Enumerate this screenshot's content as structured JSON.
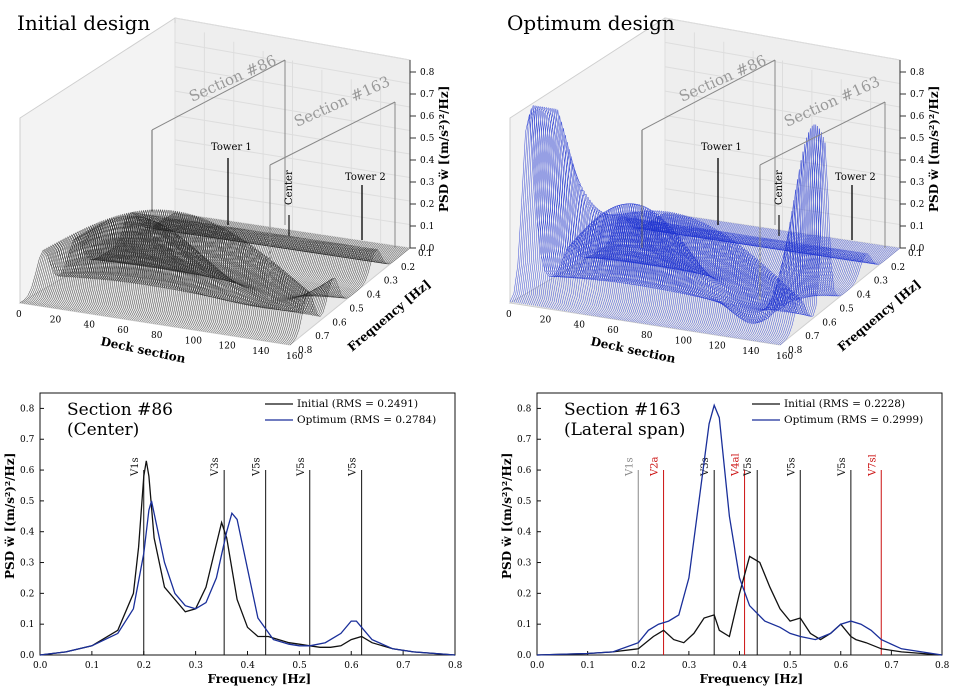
{
  "chart_data": [
    {
      "type": "surface3d",
      "title": "Initial design",
      "color": "#222222",
      "xlabel": "Deck section",
      "ylabel": "Frequency [Hz]",
      "zlabel": "PSD ẅ [(m/s²)²/Hz]",
      "x_ticks": [
        "0",
        "20",
        "40",
        "60",
        "80",
        "100",
        "120",
        "140",
        "160"
      ],
      "y_ticks": [
        "0.1",
        "0.2",
        "0.3",
        "0.4",
        "0.5",
        "0.6",
        "0.7",
        "0.8"
      ],
      "z_ticks": [
        "0.0",
        "0.1",
        "0.2",
        "0.3",
        "0.4",
        "0.5",
        "0.6",
        "0.7",
        "0.8"
      ],
      "annotations": [
        "Section #86",
        "Section #163",
        "Tower 1",
        "Center",
        "Tower 2"
      ]
    },
    {
      "type": "surface3d",
      "title": "Optimum design",
      "color": "#1a2fd0",
      "xlabel": "Deck section",
      "ylabel": "Frequency [Hz]",
      "zlabel": "PSD ẅ [(m/s²)²/Hz]",
      "x_ticks": [
        "0",
        "20",
        "40",
        "60",
        "80",
        "100",
        "120",
        "140",
        "160"
      ],
      "y_ticks": [
        "0.1",
        "0.2",
        "0.3",
        "0.4",
        "0.5",
        "0.6",
        "0.7",
        "0.8"
      ],
      "z_ticks": [
        "0.0",
        "0.1",
        "0.2",
        "0.3",
        "0.4",
        "0.5",
        "0.6",
        "0.7",
        "0.8"
      ],
      "annotations": [
        "Section #86",
        "Section #163",
        "Tower 1",
        "Center",
        "Tower 2"
      ]
    },
    {
      "type": "line",
      "title": "Section #86",
      "subtitle": "(Center)",
      "xlabel": "Frequency [Hz]",
      "ylabel": "PSD ẅ [(m/s²)²/Hz]",
      "xlim": [
        0,
        0.8
      ],
      "ylim": [
        0,
        0.85
      ],
      "x_ticks": [
        "0.0",
        "0.1",
        "0.2",
        "0.3",
        "0.4",
        "0.5",
        "0.6",
        "0.7",
        "0.8"
      ],
      "y_ticks": [
        "0.0",
        "0.1",
        "0.2",
        "0.3",
        "0.4",
        "0.5",
        "0.6",
        "0.7",
        "0.8"
      ],
      "series": [
        {
          "name": "Initial (RMS = 0.2491)",
          "color": "#111111",
          "x": [
            0,
            0.05,
            0.1,
            0.15,
            0.18,
            0.19,
            0.2,
            0.205,
            0.21,
            0.22,
            0.24,
            0.28,
            0.3,
            0.32,
            0.34,
            0.35,
            0.36,
            0.38,
            0.4,
            0.42,
            0.44,
            0.46,
            0.48,
            0.5,
            0.52,
            0.54,
            0.56,
            0.58,
            0.6,
            0.62,
            0.64,
            0.68,
            0.72,
            0.8
          ],
          "y": [
            0,
            0.01,
            0.03,
            0.08,
            0.2,
            0.35,
            0.58,
            0.63,
            0.58,
            0.38,
            0.22,
            0.14,
            0.15,
            0.22,
            0.36,
            0.43,
            0.38,
            0.18,
            0.09,
            0.06,
            0.06,
            0.05,
            0.04,
            0.035,
            0.03,
            0.025,
            0.025,
            0.03,
            0.05,
            0.06,
            0.04,
            0.02,
            0.01,
            0
          ]
        },
        {
          "name": "Optimum (RMS = 0.2784)",
          "color": "#1a2f9a",
          "x": [
            0,
            0.05,
            0.1,
            0.15,
            0.18,
            0.2,
            0.21,
            0.215,
            0.22,
            0.24,
            0.26,
            0.28,
            0.3,
            0.32,
            0.34,
            0.36,
            0.37,
            0.38,
            0.4,
            0.42,
            0.45,
            0.48,
            0.5,
            0.52,
            0.55,
            0.58,
            0.6,
            0.61,
            0.62,
            0.64,
            0.68,
            0.72,
            0.8
          ],
          "y": [
            0,
            0.01,
            0.03,
            0.07,
            0.15,
            0.33,
            0.47,
            0.5,
            0.46,
            0.3,
            0.2,
            0.16,
            0.15,
            0.17,
            0.25,
            0.4,
            0.46,
            0.44,
            0.28,
            0.12,
            0.05,
            0.035,
            0.03,
            0.03,
            0.04,
            0.07,
            0.11,
            0.11,
            0.09,
            0.05,
            0.02,
            0.01,
            0
          ]
        }
      ],
      "mode_lines": [
        {
          "label": "V1s",
          "x": 0.2,
          "color": "#111111"
        },
        {
          "label": "V3s",
          "x": 0.355,
          "color": "#111111"
        },
        {
          "label": "V5s",
          "x": 0.435,
          "color": "#111111"
        },
        {
          "label": "V5s",
          "x": 0.52,
          "color": "#111111"
        },
        {
          "label": "V5s",
          "x": 0.62,
          "color": "#111111"
        }
      ]
    },
    {
      "type": "line",
      "title": "Section #163",
      "subtitle": "(Lateral span)",
      "xlabel": "Frequency [Hz]",
      "ylabel": "PSD ẅ [(m/s²)²/Hz]",
      "xlim": [
        0,
        0.8
      ],
      "ylim": [
        0,
        0.85
      ],
      "x_ticks": [
        "0.0",
        "0.1",
        "0.2",
        "0.3",
        "0.4",
        "0.5",
        "0.6",
        "0.7",
        "0.8"
      ],
      "y_ticks": [
        "0.0",
        "0.1",
        "0.2",
        "0.3",
        "0.4",
        "0.5",
        "0.6",
        "0.7",
        "0.8"
      ],
      "series": [
        {
          "name": "Initial (RMS = 0.2228)",
          "color": "#111111",
          "x": [
            0,
            0.1,
            0.15,
            0.2,
            0.23,
            0.25,
            0.27,
            0.29,
            0.31,
            0.33,
            0.35,
            0.36,
            0.38,
            0.4,
            0.42,
            0.44,
            0.46,
            0.48,
            0.5,
            0.52,
            0.54,
            0.56,
            0.58,
            0.6,
            0.62,
            0.63,
            0.65,
            0.68,
            0.72,
            0.8
          ],
          "y": [
            0,
            0.005,
            0.01,
            0.02,
            0.06,
            0.08,
            0.05,
            0.04,
            0.07,
            0.12,
            0.13,
            0.08,
            0.06,
            0.2,
            0.32,
            0.3,
            0.22,
            0.15,
            0.11,
            0.12,
            0.07,
            0.05,
            0.07,
            0.1,
            0.06,
            0.05,
            0.04,
            0.02,
            0.01,
            0
          ]
        },
        {
          "name": "Optimum (RMS = 0.2999)",
          "color": "#1a2f9a",
          "x": [
            0,
            0.1,
            0.15,
            0.2,
            0.22,
            0.24,
            0.26,
            0.28,
            0.3,
            0.32,
            0.34,
            0.35,
            0.36,
            0.38,
            0.4,
            0.42,
            0.45,
            0.48,
            0.5,
            0.52,
            0.55,
            0.58,
            0.6,
            0.62,
            0.64,
            0.66,
            0.68,
            0.72,
            0.8
          ],
          "y": [
            0,
            0.005,
            0.01,
            0.04,
            0.08,
            0.1,
            0.11,
            0.13,
            0.25,
            0.5,
            0.75,
            0.81,
            0.77,
            0.45,
            0.25,
            0.16,
            0.11,
            0.09,
            0.07,
            0.06,
            0.05,
            0.07,
            0.1,
            0.11,
            0.1,
            0.08,
            0.05,
            0.02,
            0
          ]
        }
      ],
      "mode_lines": [
        {
          "label": "V1s",
          "x": 0.2,
          "color": "#888888"
        },
        {
          "label": "V2a",
          "x": 0.25,
          "color": "#cc1111"
        },
        {
          "label": "V3s",
          "x": 0.35,
          "color": "#111111"
        },
        {
          "label": "V4al",
          "x": 0.41,
          "color": "#cc1111"
        },
        {
          "label": "V5s",
          "x": 0.435,
          "color": "#111111"
        },
        {
          "label": "V5s",
          "x": 0.52,
          "color": "#111111"
        },
        {
          "label": "V5s",
          "x": 0.62,
          "color": "#111111"
        },
        {
          "label": "V7sl",
          "x": 0.68,
          "color": "#cc1111"
        }
      ]
    }
  ]
}
